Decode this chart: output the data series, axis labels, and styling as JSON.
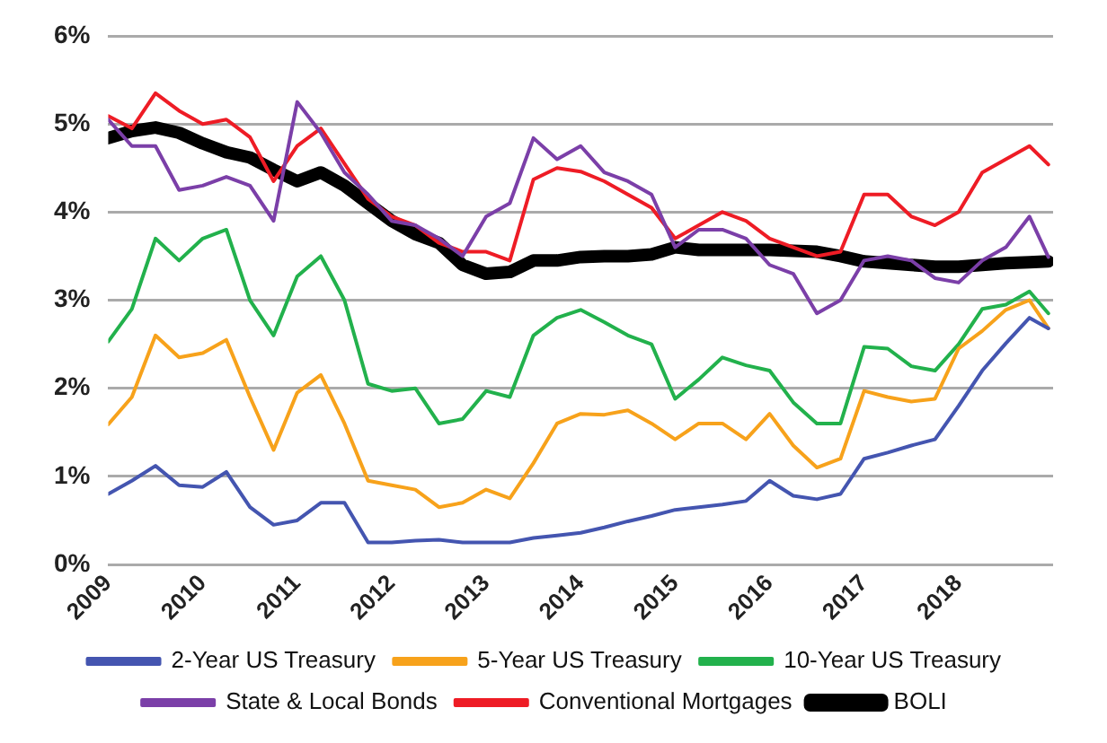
{
  "chart_data": {
    "type": "line",
    "x": [
      2009,
      2009.25,
      2009.5,
      2009.75,
      2010,
      2010.25,
      2010.5,
      2010.75,
      2011,
      2011.25,
      2011.5,
      2011.75,
      2012,
      2012.25,
      2012.5,
      2012.75,
      2013,
      2013.25,
      2013.5,
      2013.75,
      2014,
      2014.25,
      2014.5,
      2014.75,
      2015,
      2015.25,
      2015.5,
      2015.75,
      2016,
      2016.25,
      2016.5,
      2016.75,
      2017,
      2017.25,
      2017.5,
      2017.75,
      2018,
      2018.25,
      2018.5,
      2018.75,
      2018.95
    ],
    "series": [
      {
        "name": "2-Year US Treasury",
        "color": "#4455b0",
        "values": [
          0.8,
          0.95,
          1.12,
          0.9,
          0.88,
          1.05,
          0.65,
          0.45,
          0.5,
          0.7,
          0.7,
          0.25,
          0.25,
          0.27,
          0.28,
          0.25,
          0.25,
          0.25,
          0.3,
          0.33,
          0.36,
          0.42,
          0.49,
          0.55,
          0.62,
          0.65,
          0.68,
          0.72,
          0.95,
          0.78,
          0.74,
          0.8,
          1.2,
          1.27,
          1.35,
          1.42,
          1.8,
          2.2,
          2.51,
          2.8,
          2.68
        ]
      },
      {
        "name": "5-Year US Treasury",
        "color": "#f7a21b",
        "values": [
          1.59,
          1.9,
          2.6,
          2.35,
          2.4,
          2.55,
          1.9,
          1.3,
          1.95,
          2.15,
          1.6,
          0.95,
          0.9,
          0.85,
          0.65,
          0.7,
          0.85,
          0.75,
          1.15,
          1.6,
          1.71,
          1.7,
          1.75,
          1.6,
          1.42,
          1.6,
          1.6,
          1.42,
          1.71,
          1.35,
          1.1,
          1.2,
          1.97,
          1.9,
          1.85,
          1.88,
          2.45,
          2.65,
          2.89,
          3.0,
          2.68
        ]
      },
      {
        "name": "10-Year US Treasury",
        "color": "#22b14c",
        "values": [
          2.53,
          2.9,
          3.7,
          3.45,
          3.7,
          3.8,
          3.0,
          2.6,
          3.27,
          3.5,
          3.0,
          2.05,
          1.97,
          2.0,
          1.6,
          1.65,
          1.97,
          1.9,
          2.6,
          2.8,
          2.89,
          2.75,
          2.6,
          2.5,
          1.88,
          2.1,
          2.35,
          2.26,
          2.2,
          1.84,
          1.6,
          1.6,
          2.47,
          2.45,
          2.25,
          2.2,
          2.5,
          2.9,
          2.95,
          3.1,
          2.85
        ]
      },
      {
        "name": "State & Local Bonds",
        "color": "#7b3fa8",
        "values": [
          5.05,
          4.75,
          4.75,
          4.25,
          4.3,
          4.4,
          4.3,
          3.9,
          5.25,
          4.9,
          4.45,
          4.2,
          3.9,
          3.85,
          3.7,
          3.5,
          3.95,
          4.1,
          4.84,
          4.6,
          4.75,
          4.45,
          4.35,
          4.2,
          3.6,
          3.8,
          3.8,
          3.7,
          3.4,
          3.3,
          2.85,
          3.0,
          3.45,
          3.5,
          3.45,
          3.25,
          3.2,
          3.45,
          3.6,
          3.95,
          3.49
        ]
      },
      {
        "name": "Conventional Mortgages",
        "color": "#ee1c25",
        "values": [
          5.09,
          4.95,
          5.35,
          5.15,
          5.0,
          5.05,
          4.85,
          4.35,
          4.75,
          4.95,
          4.55,
          4.15,
          3.95,
          3.85,
          3.65,
          3.55,
          3.55,
          3.45,
          4.37,
          4.5,
          4.46,
          4.35,
          4.2,
          4.05,
          3.7,
          3.85,
          4.0,
          3.9,
          3.7,
          3.6,
          3.5,
          3.55,
          4.2,
          4.2,
          3.95,
          3.85,
          4.0,
          4.45,
          4.6,
          4.75,
          4.54
        ]
      },
      {
        "name": "BOLI",
        "color": "#000000",
        "values": [
          4.84,
          4.92,
          4.96,
          4.9,
          4.78,
          4.68,
          4.62,
          4.48,
          4.35,
          4.45,
          4.3,
          4.1,
          3.9,
          3.75,
          3.65,
          3.4,
          3.3,
          3.32,
          3.45,
          3.45,
          3.49,
          3.5,
          3.5,
          3.52,
          3.6,
          3.57,
          3.57,
          3.57,
          3.57,
          3.56,
          3.55,
          3.5,
          3.44,
          3.42,
          3.4,
          3.38,
          3.38,
          3.4,
          3.42,
          3.43,
          3.44
        ]
      }
    ],
    "xlim": [
      2009,
      2019
    ],
    "xticks": [
      2009,
      2010,
      2011,
      2012,
      2013,
      2014,
      2015,
      2016,
      2017,
      2018
    ],
    "ylim": [
      0,
      6
    ],
    "yticks": [
      {
        "value": 0,
        "label": "0%"
      },
      {
        "value": 1,
        "label": "1%"
      },
      {
        "value": 2,
        "label": "2%"
      },
      {
        "value": 3,
        "label": "3%"
      },
      {
        "value": 4,
        "label": "4%"
      },
      {
        "value": 5,
        "label": "5%"
      },
      {
        "value": 6,
        "label": "6%"
      }
    ],
    "grid": "y",
    "legend": "bottom",
    "marker": "none",
    "line_style": "solid"
  }
}
